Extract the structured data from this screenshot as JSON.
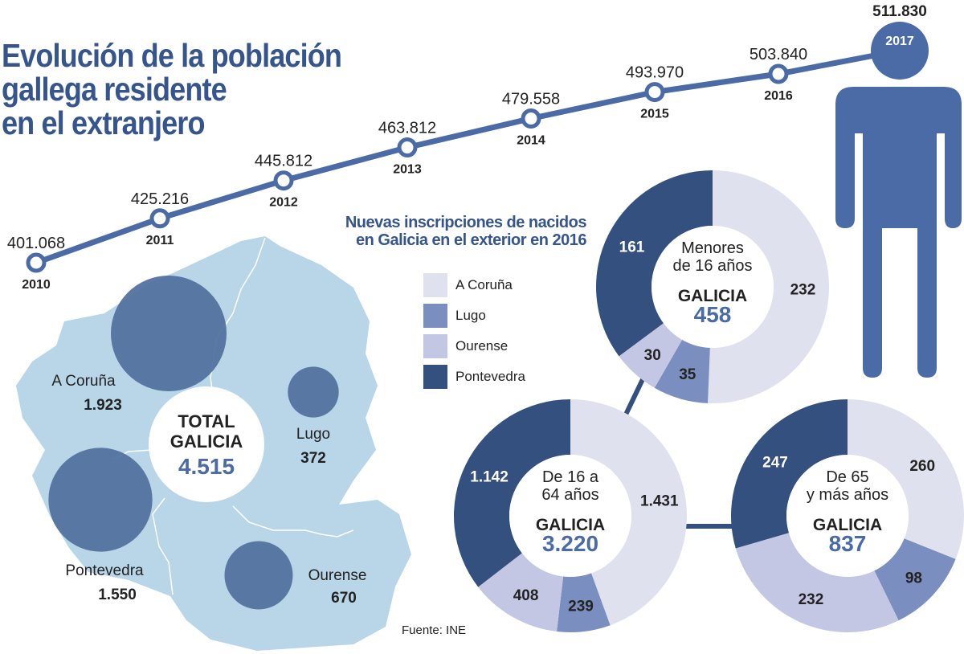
{
  "title": {
    "line1": "Evolución de la población",
    "line2": "gallega residente",
    "line3": "en el extranjero"
  },
  "subtitle": {
    "line1": "Nuevas inscripciones de nacidos",
    "line2": "en Galicia en el exterior en 2016"
  },
  "colors": {
    "accent": "#4a6ba5",
    "title": "#35558c",
    "map_land": "#b8d6e8",
    "map_bubble": "#4f6f9c",
    "A Coruña": "#e0e1ef",
    "Lugo": "#7a8ebf",
    "Ourense": "#c4c7e3",
    "Pontevedra": "#34507f"
  },
  "legend": [
    {
      "label": "A Coruña",
      "color": "#e0e1ef"
    },
    {
      "label": "Lugo",
      "color": "#7a8ebf"
    },
    {
      "label": "Ourense",
      "color": "#c4c7e3"
    },
    {
      "label": "Pontevedra",
      "color": "#34507f"
    }
  ],
  "source": "Fuente: INE",
  "chart_data": [
    {
      "type": "line",
      "title": "Evolución de la población gallega residente en el extranjero",
      "x": [
        "2010",
        "2011",
        "2012",
        "2013",
        "2014",
        "2015",
        "2016",
        "2017"
      ],
      "y": [
        401068,
        425216,
        445812,
        463812,
        479558,
        493970,
        503840,
        511830
      ],
      "value_labels": [
        "401.068",
        "425.216",
        "445.812",
        "463.812",
        "479.558",
        "493.970",
        "503.840",
        "511.830"
      ],
      "grid": false
    },
    {
      "type": "bubble_map",
      "title": "Nuevas inscripciones de nacidos en Galicia en el exterior en 2016",
      "categories": [
        "A Coruña",
        "Lugo",
        "Pontevedra",
        "Ourense"
      ],
      "values": [
        1923,
        372,
        1550,
        670
      ],
      "value_labels": [
        "1.923",
        "372",
        "1.550",
        "670"
      ],
      "total": {
        "line1": "TOTAL",
        "line2": "GALICIA",
        "value": 4515,
        "value_label": "4.515"
      }
    },
    {
      "type": "pie",
      "variant": "donut",
      "label_lines": [
        "Menores",
        "de 16 años"
      ],
      "center_title": "GALICIA",
      "total": 458,
      "total_label": "458",
      "categories": [
        "A Coruña",
        "Lugo",
        "Ourense",
        "Pontevedra"
      ],
      "values": [
        232,
        35,
        30,
        161
      ],
      "value_labels": [
        "232",
        "35",
        "30",
        "161"
      ]
    },
    {
      "type": "pie",
      "variant": "donut",
      "label_lines": [
        "De 16 a",
        "64 años"
      ],
      "center_title": "GALICIA",
      "total": 3220,
      "total_label": "3.220",
      "categories": [
        "A Coruña",
        "Lugo",
        "Ourense",
        "Pontevedra"
      ],
      "values": [
        1431,
        239,
        408,
        1142
      ],
      "value_labels": [
        "1.431",
        "239",
        "408",
        "1.142"
      ]
    },
    {
      "type": "pie",
      "variant": "donut",
      "label_lines": [
        "De 65",
        "y más años"
      ],
      "center_title": "GALICIA",
      "total": 837,
      "total_label": "837",
      "categories": [
        "A Coruña",
        "Lugo",
        "Ourense",
        "Pontevedra"
      ],
      "values": [
        260,
        98,
        232,
        247
      ],
      "value_labels": [
        "260",
        "98",
        "232",
        "247"
      ]
    }
  ]
}
